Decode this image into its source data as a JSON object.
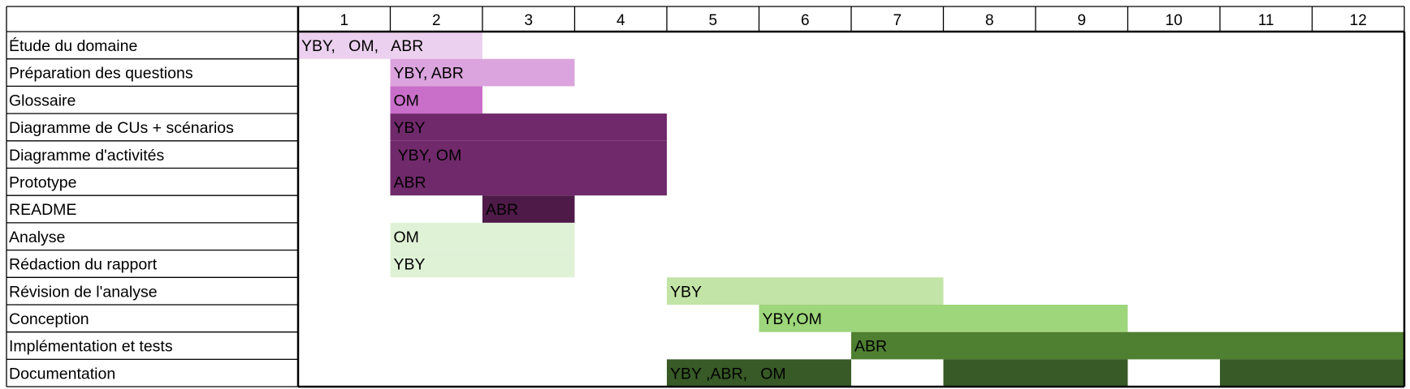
{
  "chart_data": {
    "type": "gantt",
    "columns": [
      "1",
      "2",
      "3",
      "4",
      "5",
      "6",
      "7",
      "8",
      "9",
      "10",
      "11",
      "12"
    ],
    "tasks": [
      {
        "name": "Étude du domaine",
        "start": 1,
        "end": 2,
        "label": "YBY,   OM,   ABR",
        "color": "#ecd0ef"
      },
      {
        "name": "Préparation des questions",
        "start": 2,
        "end": 3,
        "label": "YBY, ABR",
        "color": "#dba4de"
      },
      {
        "name": "Glossaire",
        "start": 2,
        "end": 2,
        "label": "OM",
        "color": "#c96fc9"
      },
      {
        "name": "Diagramme de CUs + scénarios",
        "start": 2,
        "end": 4,
        "label": "YBY",
        "color": "#70296b"
      },
      {
        "name": "Diagramme d'activités",
        "start": 2,
        "end": 4,
        "label": " YBY, OM",
        "color": "#70296b"
      },
      {
        "name": "Prototype",
        "start": 2,
        "end": 4,
        "label": "ABR",
        "color": "#70296b"
      },
      {
        "name": "README",
        "start": 3,
        "end": 3,
        "label": "ABR",
        "color": "#4e1a47"
      },
      {
        "name": "Analyse",
        "start": 2,
        "end": 3,
        "label": "OM",
        "color": "#e0f2d6"
      },
      {
        "name": "Rédaction du rapport",
        "start": 2,
        "end": 3,
        "label": "YBY",
        "color": "#e0f2d6"
      },
      {
        "name": "Révision de l'analyse",
        "start": 5,
        "end": 7,
        "label": "YBY",
        "color": "#c2e4a6"
      },
      {
        "name": "Conception",
        "start": 6,
        "end": 9,
        "label": "YBY,OM",
        "color": "#9ed67b"
      },
      {
        "name": "Implémentation et tests",
        "start": 7,
        "end": 12,
        "label": "ABR",
        "color": "#4f7f31"
      },
      {
        "name": "Documentation",
        "start": 5,
        "end": 6,
        "label": "YBY ,ABR,   OM",
        "color": "#375a26"
      },
      {
        "name": "Documentation",
        "start": 8,
        "end": 9,
        "label": "",
        "color": "#375a26"
      },
      {
        "name": "Documentation",
        "start": 11,
        "end": 12,
        "label": "",
        "color": "#375a26"
      }
    ]
  }
}
